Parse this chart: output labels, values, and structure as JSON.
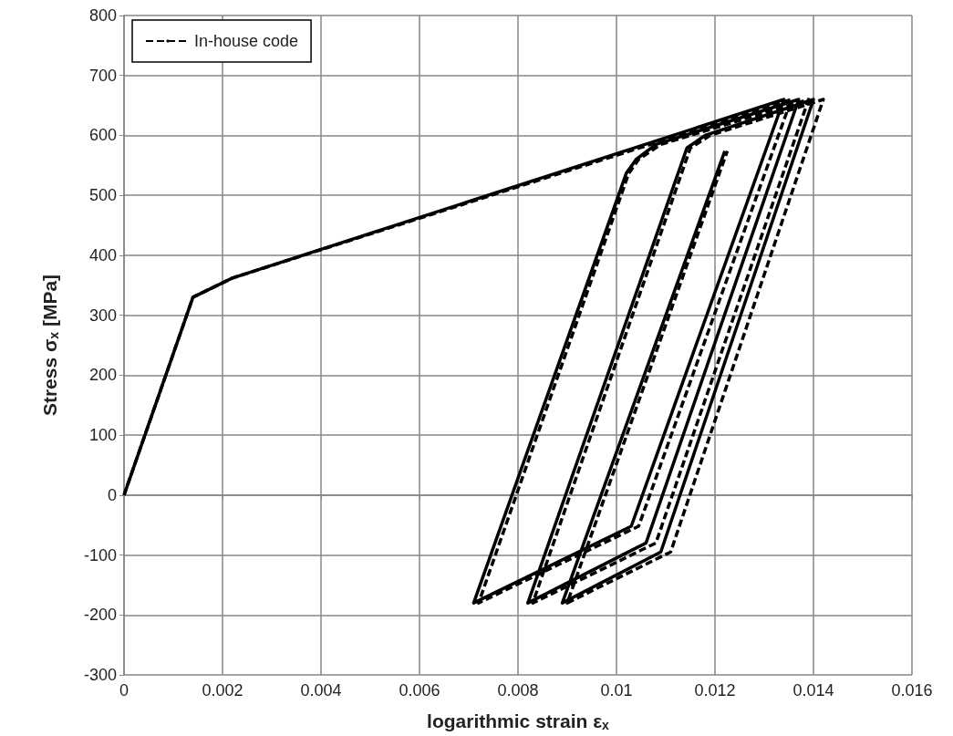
{
  "chart_data": {
    "type": "line",
    "xlabel": "logarithmic strain ε$_{x}$",
    "ylabel": "Stress σ$_{x}$ [MPa]",
    "xlim": [
      0,
      0.016
    ],
    "xticks": [
      0,
      0.002,
      0.004,
      0.006,
      0.008,
      0.01,
      0.012,
      0.014,
      0.016
    ],
    "ylim": [
      -300,
      800
    ],
    "yticks": [
      -300,
      -200,
      -100,
      0,
      100,
      200,
      300,
      400,
      500,
      600,
      700,
      800
    ],
    "grid": true,
    "legend": "top left",
    "marker": "none",
    "series": [
      {
        "color": "#000000",
        "line_style": "solid",
        "x": [
          0,
          0.0014,
          0.0022,
          0.0134,
          0.0103,
          0.0071,
          0.0102,
          0.0104,
          0.0108,
          0.0137,
          0.0106,
          0.0082,
          0.01143,
          0.0118,
          0.014,
          0.0109,
          0.0089,
          0.0122
        ],
        "values": [
          0,
          330,
          362,
          660,
          -52,
          -180,
          537,
          560,
          585,
          660,
          -80,
          -180,
          579,
          600,
          660,
          -95,
          -180,
          574
        ]
      },
      {
        "name": "In-house code",
        "color": "#000000",
        "line_style": "dashed",
        "x": [
          0,
          0.0014,
          0.0022,
          0.01355,
          0.01045,
          0.0072,
          0.01025,
          0.01045,
          0.0109,
          0.0139,
          0.0108,
          0.0083,
          0.0115,
          0.0119,
          0.0142,
          0.0111,
          0.009,
          0.01225
        ],
        "values": [
          0,
          330,
          362,
          660,
          -52,
          -180,
          537,
          560,
          585,
          660,
          -80,
          -180,
          579,
          600,
          660,
          -95,
          -180,
          574
        ]
      }
    ]
  }
}
